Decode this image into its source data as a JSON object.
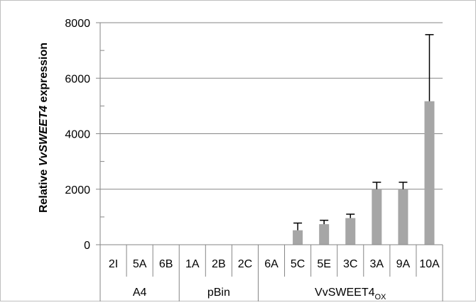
{
  "chart_data": {
    "type": "bar",
    "ylabel_parts": {
      "pre": "Relative ",
      "gene": "VvSWEET4",
      "post": " expression"
    },
    "ylim": [
      0,
      8000
    ],
    "y_ticks": [
      "0",
      "2000",
      "4000",
      "6000",
      "8000"
    ],
    "y_minor_ticks": [
      1000,
      3000,
      5000,
      7000
    ],
    "gridlines": true,
    "categories": [
      "2I",
      "5A",
      "6B",
      "1A",
      "2B",
      "2C",
      "6A",
      "5C",
      "5E",
      "3C",
      "3A",
      "9A",
      "10A"
    ],
    "values": [
      0,
      0,
      0,
      0,
      0,
      0,
      0,
      520,
      740,
      960,
      2000,
      2000,
      5170
    ],
    "error_upper": [
      0,
      0,
      0,
      0,
      0,
      0,
      0,
      780,
      880,
      1100,
      2250,
      2250,
      7570
    ],
    "groups": [
      {
        "label": "A4",
        "count": 3
      },
      {
        "label": "pBin",
        "count": 3
      },
      {
        "label": "VvSWEET4",
        "subscript": "OX",
        "count": 7
      }
    ],
    "bar_color": "#a6a6a6"
  }
}
